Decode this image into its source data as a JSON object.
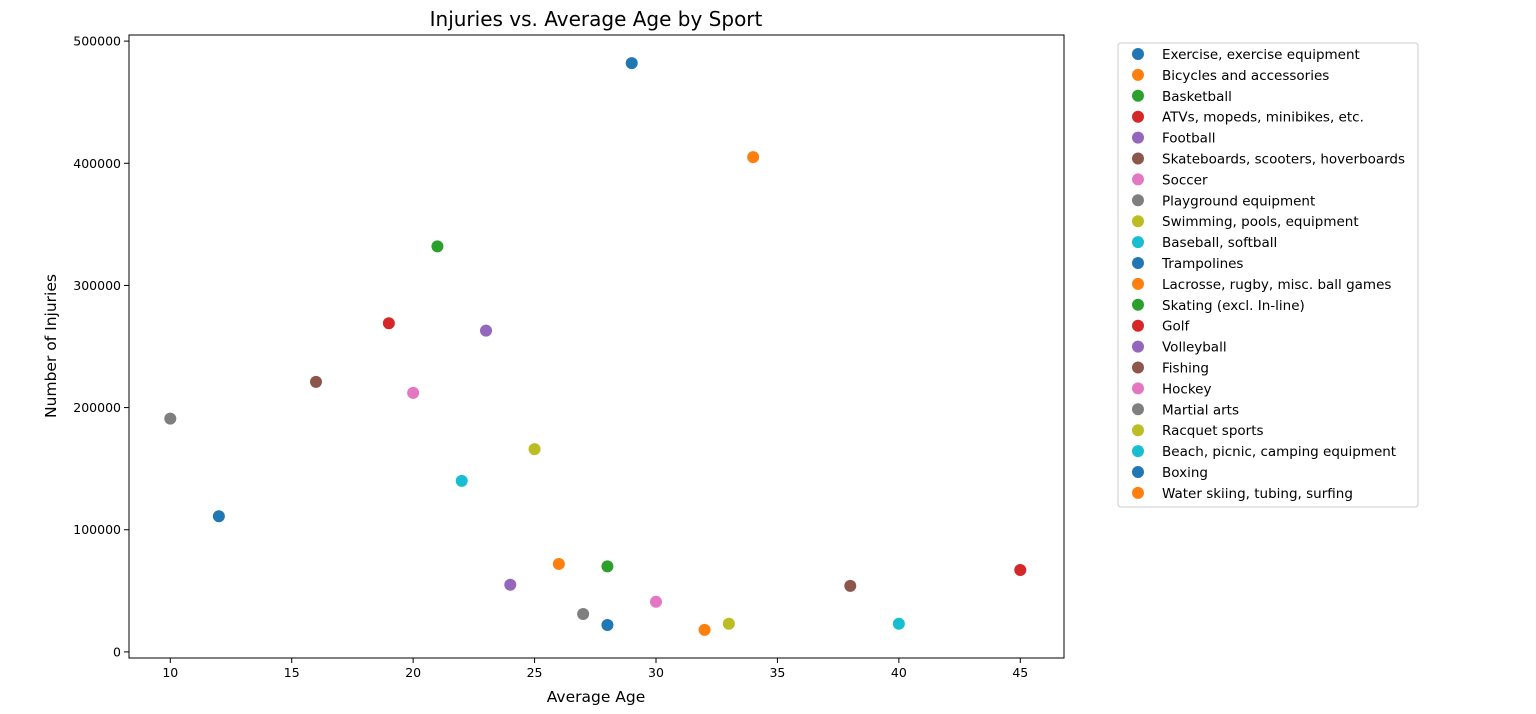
{
  "chart_data": {
    "type": "scatter",
    "title": "Injuries vs. Average Age by Sport",
    "xlabel": "Average Age",
    "ylabel": "Number of Injuries",
    "xlim": [
      8.3,
      46.8
    ],
    "ylim": [
      -5000,
      505000
    ],
    "xticks": [
      10,
      15,
      20,
      25,
      30,
      35,
      40,
      45
    ],
    "yticks": [
      0,
      100000,
      200000,
      300000,
      400000,
      500000
    ],
    "grid": false,
    "legend_position": "outside-right",
    "series": [
      {
        "name": "Exercise, exercise equipment",
        "color": "#1f77b4",
        "x": 29,
        "y": 482000
      },
      {
        "name": "Bicycles and accessories",
        "color": "#ff7f0e",
        "x": 34,
        "y": 405000
      },
      {
        "name": "Basketball",
        "color": "#2ca02c",
        "x": 21,
        "y": 332000
      },
      {
        "name": "ATVs, mopeds, minibikes, etc.",
        "color": "#d62728",
        "x": 19,
        "y": 269000
      },
      {
        "name": "Football",
        "color": "#9467bd",
        "x": 23,
        "y": 263000
      },
      {
        "name": "Skateboards, scooters, hoverboards",
        "color": "#8c564b",
        "x": 16,
        "y": 221000
      },
      {
        "name": "Soccer",
        "color": "#e377c2",
        "x": 20,
        "y": 212000
      },
      {
        "name": "Playground equipment",
        "color": "#7f7f7f",
        "x": 10,
        "y": 191000
      },
      {
        "name": "Swimming, pools, equipment",
        "color": "#bcbd22",
        "x": 25,
        "y": 166000
      },
      {
        "name": "Baseball, softball",
        "color": "#17becf",
        "x": 22,
        "y": 140000
      },
      {
        "name": "Trampolines",
        "color": "#1f77b4",
        "x": 12,
        "y": 111000
      },
      {
        "name": "Lacrosse, rugby, misc. ball games",
        "color": "#ff7f0e",
        "x": 26,
        "y": 72000
      },
      {
        "name": "Skating (excl. In-line)",
        "color": "#2ca02c",
        "x": 28,
        "y": 70000
      },
      {
        "name": "Golf",
        "color": "#d62728",
        "x": 45,
        "y": 67000
      },
      {
        "name": "Volleyball",
        "color": "#9467bd",
        "x": 24,
        "y": 55000
      },
      {
        "name": "Fishing",
        "color": "#8c564b",
        "x": 38,
        "y": 54000
      },
      {
        "name": "Hockey",
        "color": "#e377c2",
        "x": 30,
        "y": 41000
      },
      {
        "name": "Martial arts",
        "color": "#7f7f7f",
        "x": 27,
        "y": 31000
      },
      {
        "name": "Racquet sports",
        "color": "#bcbd22",
        "x": 33,
        "y": 23000
      },
      {
        "name": "Beach, picnic, camping equipment",
        "color": "#17becf",
        "x": 40,
        "y": 23000
      },
      {
        "name": "Boxing",
        "color": "#1f77b4",
        "x": 28,
        "y": 22000
      },
      {
        "name": "Water skiing, tubing, surfing",
        "color": "#ff7f0e",
        "x": 32,
        "y": 18000
      }
    ]
  }
}
